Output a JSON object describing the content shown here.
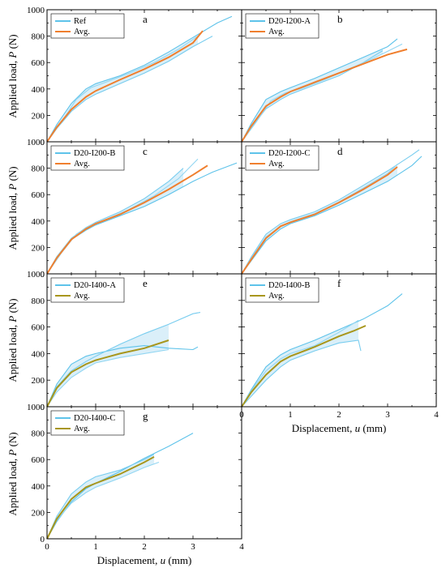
{
  "figure": {
    "ylabel_main": "Applied load, ",
    "ylabel_var": "P",
    "ylabel_unit": " (N)",
    "xlabel_main": "Displacement, ",
    "xlabel_var": "u",
    "xlabel_unit": " (mm)"
  },
  "chart_data": [
    {
      "type": "line",
      "letter": "a",
      "xlim": [
        0,
        4
      ],
      "ylim": [
        0,
        1000
      ],
      "legend": [
        "Ref",
        "Avg."
      ],
      "avg_color": "#f07f2e",
      "avg": {
        "x": [
          0,
          0.2,
          0.5,
          0.8,
          1.0,
          1.5,
          2.0,
          2.5,
          3.0,
          3.2
        ],
        "y": [
          0,
          110,
          245,
          340,
          385,
          470,
          550,
          640,
          750,
          840
        ]
      },
      "specimens": [
        {
          "x": [
            0,
            0.2,
            0.5,
            0.8,
            1.0,
            1.5,
            2.0,
            2.5,
            3.0,
            3.5,
            3.8
          ],
          "y": [
            0,
            130,
            290,
            400,
            440,
            500,
            580,
            680,
            790,
            900,
            950
          ]
        },
        {
          "x": [
            0,
            0.2,
            0.5,
            0.8,
            1.0,
            1.5,
            2.0,
            2.5,
            3.0,
            3.4
          ],
          "y": [
            0,
            100,
            230,
            320,
            360,
            440,
            520,
            610,
            720,
            800
          ]
        },
        {
          "x": [
            0,
            0.3,
            0.6,
            0.9,
            1.2,
            1.7,
            2.2,
            2.7,
            3.1
          ],
          "y": [
            0,
            150,
            320,
            410,
            450,
            520,
            600,
            700,
            800
          ]
        }
      ]
    },
    {
      "type": "line",
      "letter": "b",
      "xlim": [
        0,
        4
      ],
      "ylim": [
        0,
        1000
      ],
      "legend": [
        "D20-I200-A",
        "Avg."
      ],
      "avg_color": "#f07f2e",
      "avg": {
        "x": [
          0,
          0.2,
          0.5,
          0.8,
          1.0,
          1.5,
          2.0,
          2.5,
          3.0,
          3.4
        ],
        "y": [
          0,
          120,
          270,
          340,
          380,
          450,
          520,
          590,
          660,
          700
        ]
      },
      "specimens": [
        {
          "x": [
            0,
            0.2,
            0.5,
            0.8,
            1.0,
            1.5,
            2.0,
            2.5,
            3.0,
            3.2
          ],
          "y": [
            0,
            140,
            320,
            380,
            410,
            480,
            560,
            640,
            720,
            780
          ]
        },
        {
          "x": [
            0,
            0.2,
            0.5,
            0.8,
            1.0,
            1.5,
            2.0,
            2.5,
            2.9
          ],
          "y": [
            0,
            110,
            250,
            320,
            360,
            430,
            500,
            600,
            690
          ]
        },
        {
          "x": [
            0,
            0.3,
            0.6,
            0.9,
            1.2,
            1.7,
            2.2,
            2.7,
            3.3
          ],
          "y": [
            0,
            150,
            310,
            370,
            400,
            470,
            550,
            630,
            740
          ]
        }
      ]
    },
    {
      "type": "line",
      "letter": "c",
      "xlim": [
        0,
        4
      ],
      "ylim": [
        0,
        1000
      ],
      "legend": [
        "D20-I200-B",
        "Avg."
      ],
      "avg_color": "#f07f2e",
      "avg": {
        "x": [
          0,
          0.2,
          0.5,
          0.8,
          1.0,
          1.5,
          2.0,
          2.5,
          3.0,
          3.3
        ],
        "y": [
          0,
          120,
          260,
          340,
          380,
          450,
          540,
          640,
          750,
          820
        ]
      },
      "specimens": [
        {
          "x": [
            0,
            0.2,
            0.5,
            0.8,
            1.0,
            1.5,
            2.0,
            2.5,
            3.0,
            3.4,
            3.9
          ],
          "y": [
            0,
            120,
            260,
            330,
            370,
            440,
            510,
            600,
            700,
            770,
            840
          ]
        },
        {
          "x": [
            0,
            0.2,
            0.5,
            0.8,
            1.0,
            1.5,
            2.0,
            2.5,
            2.8
          ],
          "y": [
            0,
            130,
            270,
            350,
            390,
            470,
            570,
            700,
            800
          ]
        },
        {
          "x": [
            0,
            0.3,
            0.6,
            0.9,
            1.2,
            1.7,
            2.2,
            2.7,
            3.1
          ],
          "y": [
            0,
            160,
            300,
            370,
            410,
            490,
            590,
            720,
            870
          ]
        }
      ]
    },
    {
      "type": "line",
      "letter": "d",
      "xlim": [
        0,
        4
      ],
      "ylim": [
        0,
        1000
      ],
      "legend": [
        "D20-I200-C",
        "Avg."
      ],
      "avg_color": "#f07f2e",
      "avg": {
        "x": [
          0,
          0.2,
          0.5,
          0.8,
          1.0,
          1.5,
          2.0,
          2.5,
          3.0,
          3.2
        ],
        "y": [
          0,
          110,
          270,
          360,
          390,
          450,
          540,
          640,
          750,
          810
        ]
      },
      "specimens": [
        {
          "x": [
            0,
            0.2,
            0.5,
            0.8,
            1.0,
            1.5,
            2.0,
            2.5,
            3.0,
            3.5,
            3.7
          ],
          "y": [
            0,
            100,
            250,
            340,
            380,
            440,
            520,
            610,
            700,
            820,
            890
          ]
        },
        {
          "x": [
            0,
            0.2,
            0.5,
            0.8,
            1.0,
            1.5,
            2.0,
            2.5,
            3.0,
            3.5,
            3.65
          ],
          "y": [
            0,
            130,
            300,
            380,
            410,
            470,
            560,
            670,
            780,
            900,
            940
          ]
        },
        {
          "x": [
            0,
            0.2,
            0.5,
            0.8,
            1.0,
            1.5,
            2.0,
            2.5,
            3.0,
            3.2
          ],
          "y": [
            0,
            120,
            280,
            360,
            395,
            455,
            545,
            650,
            760,
            830
          ]
        }
      ]
    },
    {
      "type": "line",
      "letter": "e",
      "xlim": [
        0,
        4
      ],
      "ylim": [
        0,
        1000
      ],
      "legend": [
        "D20-I400-A",
        "Avg."
      ],
      "avg_color": "#a8961c",
      "avg": {
        "x": [
          0,
          0.2,
          0.5,
          0.8,
          1.0,
          1.5,
          2.0,
          2.5
        ],
        "y": [
          0,
          140,
          260,
          320,
          350,
          400,
          440,
          500
        ]
      },
      "specimens": [
        {
          "x": [
            0,
            0.2,
            0.5,
            0.8,
            1.0,
            1.5,
            2.0,
            2.5,
            3.0,
            3.1
          ],
          "y": [
            0,
            170,
            320,
            380,
            400,
            440,
            460,
            440,
            430,
            450
          ]
        },
        {
          "x": [
            0,
            0.2,
            0.5,
            0.8,
            1.0,
            1.5,
            2.0,
            2.5,
            3.0,
            3.15
          ],
          "y": [
            0,
            150,
            270,
            340,
            380,
            470,
            550,
            620,
            700,
            710
          ]
        },
        {
          "x": [
            0,
            0.2,
            0.5,
            0.8,
            1.0,
            1.5,
            2.0,
            2.5
          ],
          "y": [
            0,
            110,
            220,
            290,
            330,
            370,
            400,
            430
          ]
        }
      ]
    },
    {
      "type": "line",
      "letter": "f",
      "xlim": [
        0,
        4
      ],
      "ylim": [
        0,
        1000
      ],
      "legend": [
        "D20-I400-B",
        "Avg."
      ],
      "avg_color": "#a8961c",
      "avg": {
        "x": [
          0,
          0.2,
          0.5,
          0.8,
          1.0,
          1.5,
          2.0,
          2.3,
          2.55
        ],
        "y": [
          0,
          110,
          240,
          340,
          380,
          450,
          530,
          570,
          610
        ]
      },
      "specimens": [
        {
          "x": [
            0,
            0.2,
            0.5,
            0.8,
            1.0,
            1.5,
            2.0,
            2.5,
            3.0,
            3.3
          ],
          "y": [
            0,
            130,
            300,
            390,
            430,
            500,
            580,
            660,
            760,
            850
          ]
        },
        {
          "x": [
            0,
            0.2,
            0.5,
            0.8,
            1.0,
            1.5,
            2.0,
            2.4,
            2.45
          ],
          "y": [
            0,
            80,
            200,
            300,
            350,
            420,
            480,
            500,
            420
          ]
        },
        {
          "x": [
            0,
            0.2,
            0.5,
            0.8,
            1.0,
            1.5,
            2.0,
            2.4
          ],
          "y": [
            0,
            120,
            270,
            360,
            400,
            460,
            560,
            650
          ]
        }
      ]
    },
    {
      "type": "line",
      "letter": "g",
      "xlim": [
        0,
        4
      ],
      "ylim": [
        0,
        1000
      ],
      "legend": [
        "D20-I400-C",
        "Avg."
      ],
      "avg_color": "#a8961c",
      "avg": {
        "x": [
          0,
          0.2,
          0.5,
          0.8,
          1.0,
          1.5,
          2.0,
          2.2
        ],
        "y": [
          0,
          150,
          300,
          390,
          420,
          490,
          580,
          620
        ]
      },
      "specimens": [
        {
          "x": [
            0,
            0.2,
            0.5,
            0.8,
            1.0,
            1.5,
            2.0,
            2.5,
            3.0
          ],
          "y": [
            0,
            130,
            280,
            380,
            420,
            510,
            610,
            700,
            800
          ]
        },
        {
          "x": [
            0,
            0.2,
            0.5,
            0.8,
            1.0,
            1.5,
            2.0,
            2.2
          ],
          "y": [
            0,
            170,
            340,
            430,
            470,
            520,
            600,
            640
          ]
        },
        {
          "x": [
            0,
            0.2,
            0.5,
            0.8,
            1.0,
            1.5,
            2.0,
            2.3
          ],
          "y": [
            0,
            140,
            270,
            350,
            390,
            460,
            540,
            580
          ]
        }
      ]
    }
  ]
}
